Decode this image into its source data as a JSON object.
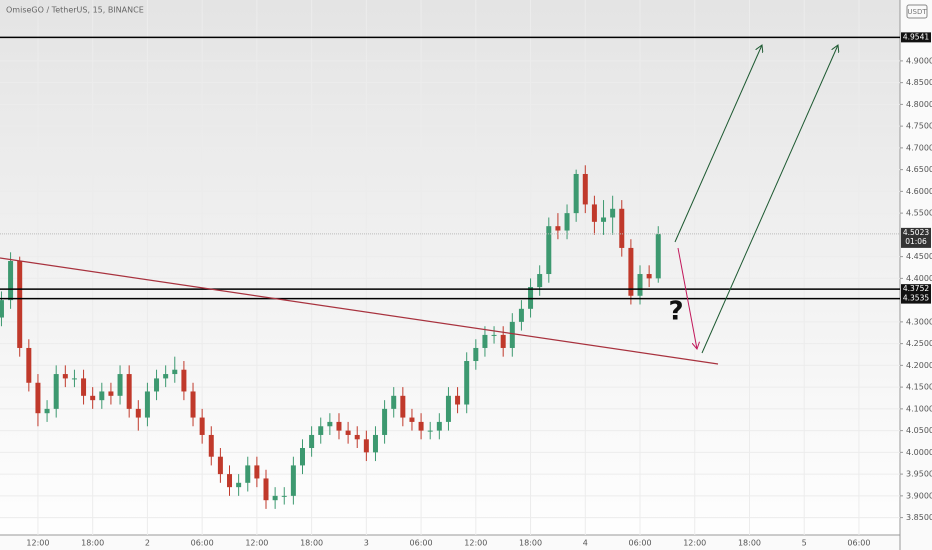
{
  "chart_data": {
    "type": "candlestick",
    "title": "OmiseGO / TetherUS, 15, BINANCE",
    "quote": "USDT",
    "open": [
      4.31,
      4.35,
      4.44,
      4.24,
      4.16,
      4.09,
      4.1,
      4.18,
      4.17,
      4.17,
      4.13,
      4.12,
      4.14,
      4.13,
      4.18,
      4.1,
      4.08,
      4.14,
      4.17,
      4.18,
      4.19,
      4.14,
      4.08,
      4.04,
      3.99,
      3.95,
      3.92,
      3.93,
      3.97,
      3.94,
      3.89,
      3.9,
      3.9,
      3.97,
      4.01,
      4.04,
      4.06,
      4.07,
      4.05,
      4.04,
      4.03,
      4.0,
      4.04,
      4.1,
      4.13,
      4.08,
      4.07,
      4.05,
      4.05,
      4.07,
      4.13,
      4.11,
      4.21,
      4.24,
      4.27,
      4.27,
      4.24,
      4.3,
      4.33,
      4.38,
      4.41,
      4.52,
      4.51,
      4.55,
      4.64,
      4.57,
      4.53,
      4.54,
      4.56,
      4.47,
      4.36,
      4.41,
      4.4
    ],
    "high": [
      4.37,
      4.46,
      4.45,
      4.26,
      4.18,
      4.12,
      4.2,
      4.2,
      4.19,
      4.19,
      4.15,
      4.16,
      4.16,
      4.2,
      4.2,
      4.12,
      4.16,
      4.19,
      4.2,
      4.22,
      4.21,
      4.16,
      4.1,
      4.06,
      4.01,
      3.97,
      3.95,
      3.99,
      3.99,
      3.96,
      3.92,
      3.92,
      3.99,
      4.03,
      4.06,
      4.08,
      4.09,
      4.09,
      4.07,
      4.06,
      4.05,
      4.06,
      4.12,
      4.15,
      4.15,
      4.1,
      4.09,
      4.07,
      4.09,
      4.15,
      4.15,
      4.23,
      4.26,
      4.29,
      4.29,
      4.29,
      4.32,
      4.35,
      4.4,
      4.43,
      4.54,
      4.55,
      4.57,
      4.65,
      4.66,
      4.59,
      4.58,
      4.59,
      4.58,
      4.49,
      4.43,
      4.43,
      4.52
    ],
    "low": [
      4.29,
      4.33,
      4.22,
      4.14,
      4.06,
      4.07,
      4.08,
      4.15,
      4.15,
      4.11,
      4.1,
      4.1,
      4.11,
      4.11,
      4.08,
      4.05,
      4.06,
      4.12,
      4.15,
      4.16,
      4.12,
      4.06,
      4.02,
      3.97,
      3.93,
      3.9,
      3.9,
      3.91,
      3.92,
      3.87,
      3.87,
      3.88,
      3.88,
      3.95,
      3.99,
      4.02,
      4.04,
      4.03,
      4.02,
      4.01,
      3.98,
      3.98,
      4.02,
      4.08,
      4.06,
      4.05,
      4.03,
      4.03,
      4.03,
      4.05,
      4.09,
      4.09,
      4.19,
      4.22,
      4.25,
      4.22,
      4.22,
      4.28,
      4.31,
      4.36,
      4.39,
      4.49,
      4.49,
      4.53,
      4.55,
      4.5,
      4.5,
      4.5,
      4.45,
      4.34,
      4.34,
      4.38,
      4.39
    ],
    "close": [
      4.35,
      4.44,
      4.24,
      4.16,
      4.09,
      4.1,
      4.18,
      4.17,
      4.17,
      4.13,
      4.12,
      4.14,
      4.13,
      4.18,
      4.1,
      4.08,
      4.14,
      4.17,
      4.18,
      4.19,
      4.14,
      4.08,
      4.04,
      3.99,
      3.95,
      3.92,
      3.93,
      3.97,
      3.94,
      3.89,
      3.9,
      3.9,
      3.97,
      4.01,
      4.04,
      4.06,
      4.07,
      4.05,
      4.04,
      4.03,
      4.0,
      4.04,
      4.1,
      4.13,
      4.08,
      4.07,
      4.05,
      4.05,
      4.07,
      4.13,
      4.11,
      4.21,
      4.24,
      4.27,
      4.27,
      4.24,
      4.3,
      4.33,
      4.38,
      4.41,
      4.52,
      4.51,
      4.55,
      4.64,
      4.57,
      4.53,
      4.54,
      4.56,
      4.47,
      4.36,
      4.41,
      4.4,
      4.5023
    ],
    "up_color": "#3d9970",
    "down_color": "#c0392b",
    "xlim": [
      -0.16,
      98.5
    ],
    "xticks": [
      {
        "value": 4,
        "label": "12:00"
      },
      {
        "value": 10,
        "label": "18:00"
      },
      {
        "value": 16,
        "label": "2"
      },
      {
        "value": 22,
        "label": "06:00"
      },
      {
        "value": 28,
        "label": "12:00"
      },
      {
        "value": 34,
        "label": "18:00"
      },
      {
        "value": 40,
        "label": "3"
      },
      {
        "value": 46,
        "label": "06:00"
      },
      {
        "value": 52,
        "label": "12:00"
      },
      {
        "value": 58,
        "label": "18:00"
      },
      {
        "value": 64,
        "label": "4"
      },
      {
        "value": 70,
        "label": "06:00"
      },
      {
        "value": 76,
        "label": "12:00"
      },
      {
        "value": 82,
        "label": "18:00"
      },
      {
        "value": 88,
        "label": "5"
      },
      {
        "value": 94,
        "label": "06:00"
      }
    ],
    "ylim": [
      3.81,
      5.04
    ],
    "yticks": [
      {
        "value": 3.85,
        "label": "3.8500"
      },
      {
        "value": 3.9,
        "label": "3.9000"
      },
      {
        "value": 3.95,
        "label": "3.9500"
      },
      {
        "value": 4.0,
        "label": "4.0000"
      },
      {
        "value": 4.05,
        "label": "4.0500"
      },
      {
        "value": 4.1,
        "label": "4.1000"
      },
      {
        "value": 4.15,
        "label": "4.1500"
      },
      {
        "value": 4.2,
        "label": "4.2000"
      },
      {
        "value": 4.25,
        "label": "4.2500"
      },
      {
        "value": 4.3,
        "label": "4.3000"
      },
      {
        "value": 4.4,
        "label": "4.4000"
      },
      {
        "value": 4.45,
        "label": "4.4500"
      },
      {
        "value": 4.55,
        "label": "4.5500"
      },
      {
        "value": 4.6,
        "label": "4.6000"
      },
      {
        "value": 4.65,
        "label": "4.6500"
      },
      {
        "value": 4.7,
        "label": "4.7000"
      },
      {
        "value": 4.75,
        "label": "4.7500"
      },
      {
        "value": 4.8,
        "label": "4.8000"
      },
      {
        "value": 4.85,
        "label": "4.8500"
      },
      {
        "value": 4.9,
        "label": "4.9000"
      }
    ],
    "levels": [
      4.9541,
      4.3752,
      4.3535
    ],
    "level_color": "#000000",
    "last_price": 4.5023,
    "countdown": "01:06",
    "annotation": "?"
  }
}
